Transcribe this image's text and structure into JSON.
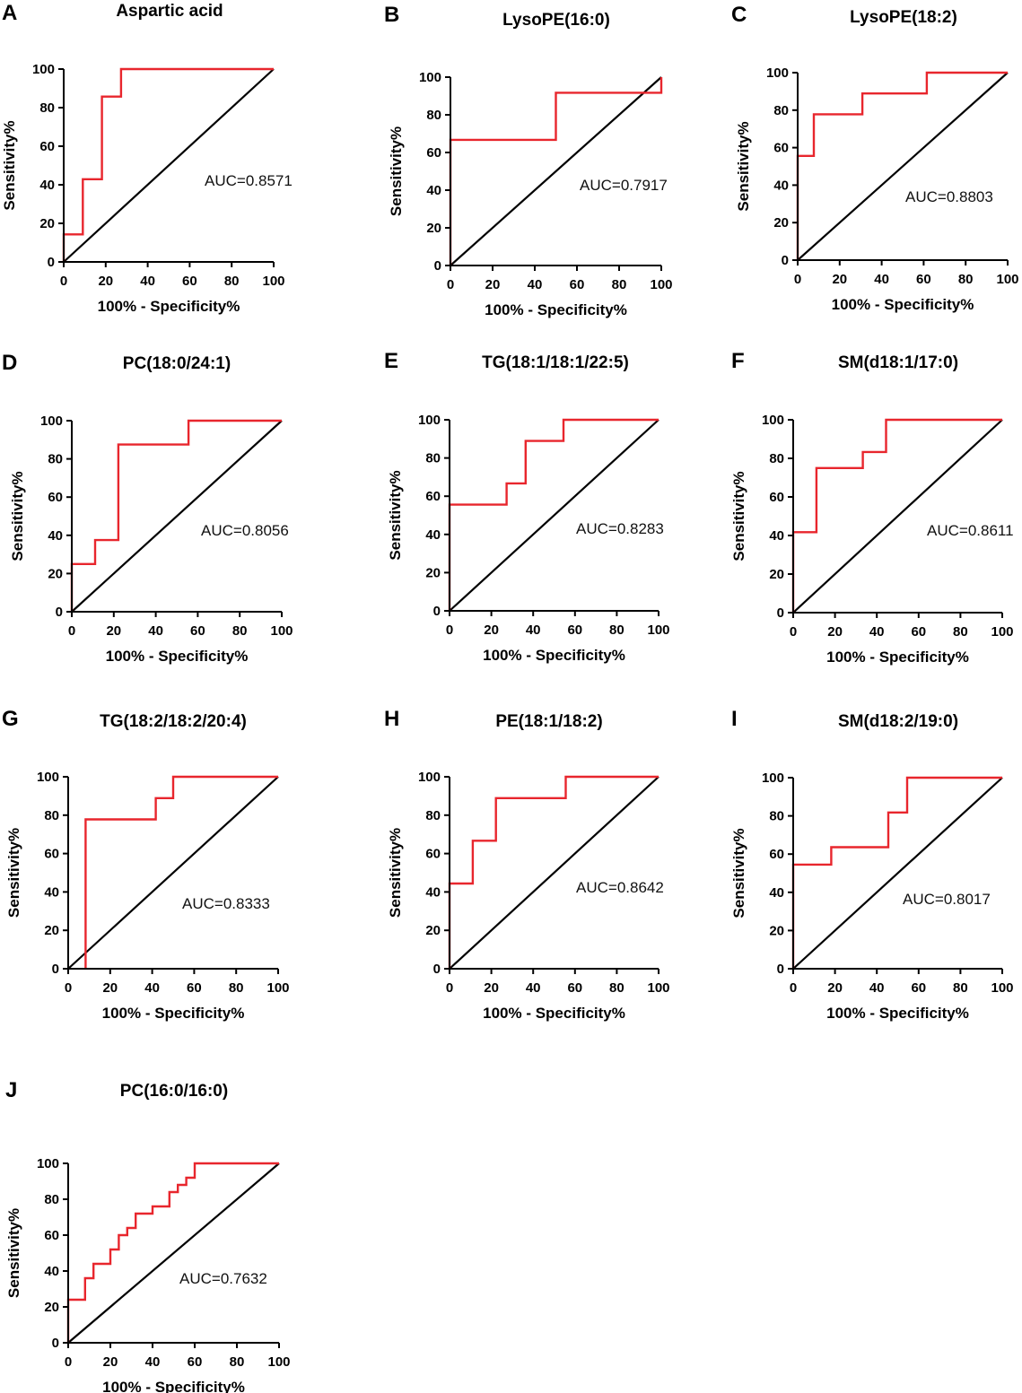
{
  "colors": {
    "roc": "#e8262d",
    "reference": "#000000",
    "axis": "#000000"
  },
  "chart_data": [
    {
      "panel": "A",
      "type": "line",
      "title": "Aspartic acid",
      "xlabel": "100% - Specificity%",
      "ylabel": "Sensitivity%",
      "xlim": [
        0,
        100
      ],
      "ylim": [
        0,
        100
      ],
      "x_ticks": [
        "0",
        "20",
        "40",
        "60",
        "80",
        "100"
      ],
      "y_ticks": [
        "0",
        "20",
        "40",
        "60",
        "80",
        "100"
      ],
      "annotation": "AUC=0.8571",
      "auc": 0.8571,
      "series": [
        {
          "name": "ROC",
          "points": [
            [
              0,
              0
            ],
            [
              0,
              14.3
            ],
            [
              9.1,
              14.3
            ],
            [
              9.1,
              42.9
            ],
            [
              18.2,
              42.9
            ],
            [
              18.2,
              85.7
            ],
            [
              27.3,
              85.7
            ],
            [
              27.3,
              100
            ],
            [
              100,
              100
            ]
          ]
        },
        {
          "name": "Reference",
          "points": [
            [
              0,
              0
            ],
            [
              100,
              100
            ]
          ]
        }
      ]
    },
    {
      "panel": "B",
      "type": "line",
      "title": "LysoPE(16:0)",
      "xlabel": "100% - Specificity%",
      "ylabel": "Sensitivity%",
      "xlim": [
        0,
        100
      ],
      "ylim": [
        0,
        100
      ],
      "x_ticks": [
        "0",
        "20",
        "40",
        "60",
        "80",
        "100"
      ],
      "y_ticks": [
        "0",
        "20",
        "40",
        "60",
        "80",
        "100"
      ],
      "annotation": "AUC=0.7917",
      "auc": 0.7917,
      "series": [
        {
          "name": "ROC",
          "points": [
            [
              0,
              0
            ],
            [
              0,
              66.7
            ],
            [
              50,
              66.7
            ],
            [
              50,
              91.7
            ],
            [
              100,
              91.7
            ],
            [
              100,
              100
            ]
          ]
        },
        {
          "name": "Reference",
          "points": [
            [
              0,
              0
            ],
            [
              100,
              100
            ]
          ]
        }
      ]
    },
    {
      "panel": "C",
      "type": "line",
      "title": "LysoPE(18:2)",
      "xlabel": "100% - Specificity%",
      "ylabel": "Sensitivity%",
      "xlim": [
        0,
        100
      ],
      "ylim": [
        0,
        100
      ],
      "x_ticks": [
        "0",
        "20",
        "40",
        "60",
        "80",
        "100"
      ],
      "y_ticks": [
        "0",
        "20",
        "40",
        "60",
        "80",
        "100"
      ],
      "annotation": "AUC=0.8803",
      "auc": 0.8803,
      "series": [
        {
          "name": "ROC",
          "points": [
            [
              0,
              0
            ],
            [
              0,
              55.6
            ],
            [
              7.7,
              55.6
            ],
            [
              7.7,
              77.8
            ],
            [
              30.8,
              77.8
            ],
            [
              30.8,
              88.9
            ],
            [
              61.5,
              88.9
            ],
            [
              61.5,
              100
            ],
            [
              100,
              100
            ]
          ]
        },
        {
          "name": "Reference",
          "points": [
            [
              0,
              0
            ],
            [
              100,
              100
            ]
          ]
        }
      ]
    },
    {
      "panel": "D",
      "type": "line",
      "title": "PC(18:0/24:1)",
      "xlabel": "100% - Specificity%",
      "ylabel": "Sensitivity%",
      "xlim": [
        0,
        100
      ],
      "ylim": [
        0,
        100
      ],
      "x_ticks": [
        "0",
        "20",
        "40",
        "60",
        "80",
        "100"
      ],
      "y_ticks": [
        "0",
        "20",
        "40",
        "60",
        "80",
        "100"
      ],
      "annotation": "AUC=0.8056",
      "auc": 0.8056,
      "series": [
        {
          "name": "ROC",
          "points": [
            [
              0,
              0
            ],
            [
              0,
              25
            ],
            [
              11.1,
              25
            ],
            [
              11.1,
              37.5
            ],
            [
              22.2,
              37.5
            ],
            [
              22.2,
              87.5
            ],
            [
              55.6,
              87.5
            ],
            [
              55.6,
              100
            ],
            [
              100,
              100
            ]
          ]
        },
        {
          "name": "Reference",
          "points": [
            [
              0,
              0
            ],
            [
              100,
              100
            ]
          ]
        }
      ]
    },
    {
      "panel": "E",
      "type": "line",
      "title": "TG(18:1/18:1/22:5)",
      "xlabel": "100% - Specificity%",
      "ylabel": "Sensitivity%",
      "xlim": [
        0,
        100
      ],
      "ylim": [
        0,
        100
      ],
      "x_ticks": [
        "0",
        "20",
        "40",
        "60",
        "80",
        "100"
      ],
      "y_ticks": [
        "0",
        "20",
        "40",
        "60",
        "80",
        "100"
      ],
      "annotation": "AUC=0.8283",
      "auc": 0.8283,
      "series": [
        {
          "name": "ROC",
          "points": [
            [
              0,
              0
            ],
            [
              0,
              55.6
            ],
            [
              27.3,
              55.6
            ],
            [
              27.3,
              66.7
            ],
            [
              36.4,
              66.7
            ],
            [
              36.4,
              88.9
            ],
            [
              54.5,
              88.9
            ],
            [
              54.5,
              100
            ],
            [
              100,
              100
            ]
          ]
        },
        {
          "name": "Reference",
          "points": [
            [
              0,
              0
            ],
            [
              100,
              100
            ]
          ]
        }
      ]
    },
    {
      "panel": "F",
      "type": "line",
      "title": "SM(d18:1/17:0)",
      "xlabel": "100% - Specificity%",
      "ylabel": "Sensitivity%",
      "xlim": [
        0,
        100
      ],
      "ylim": [
        0,
        100
      ],
      "x_ticks": [
        "0",
        "20",
        "40",
        "60",
        "80",
        "100"
      ],
      "y_ticks": [
        "0",
        "20",
        "40",
        "60",
        "80",
        "100"
      ],
      "annotation": "AUC=0.8611",
      "auc": 0.8611,
      "series": [
        {
          "name": "ROC",
          "points": [
            [
              0,
              0
            ],
            [
              0,
              41.7
            ],
            [
              11.1,
              41.7
            ],
            [
              11.1,
              75
            ],
            [
              33.3,
              75
            ],
            [
              33.3,
              83.3
            ],
            [
              44.4,
              83.3
            ],
            [
              44.4,
              100
            ],
            [
              100,
              100
            ]
          ]
        },
        {
          "name": "Reference",
          "points": [
            [
              0,
              0
            ],
            [
              100,
              100
            ]
          ]
        }
      ]
    },
    {
      "panel": "G",
      "type": "line",
      "title": "TG(18:2/18:2/20:4)",
      "xlabel": "100% - Specificity%",
      "ylabel": "Sensitivity%",
      "xlim": [
        0,
        100
      ],
      "ylim": [
        0,
        100
      ],
      "x_ticks": [
        "0",
        "20",
        "40",
        "60",
        "80",
        "100"
      ],
      "y_ticks": [
        "0",
        "20",
        "40",
        "60",
        "80",
        "100"
      ],
      "annotation": "AUC=0.8333",
      "auc": 0.8333,
      "series": [
        {
          "name": "ROC",
          "points": [
            [
              8.3,
              0
            ],
            [
              8.3,
              77.8
            ],
            [
              41.7,
              77.8
            ],
            [
              41.7,
              88.9
            ],
            [
              50,
              88.9
            ],
            [
              50,
              100
            ],
            [
              100,
              100
            ]
          ]
        },
        {
          "name": "Reference",
          "points": [
            [
              0,
              0
            ],
            [
              100,
              100
            ]
          ]
        }
      ]
    },
    {
      "panel": "H",
      "type": "line",
      "title": "PE(18:1/18:2)",
      "xlabel": "100% - Specificity%",
      "ylabel": "Sensitivity%",
      "xlim": [
        0,
        100
      ],
      "ylim": [
        0,
        100
      ],
      "x_ticks": [
        "0",
        "20",
        "40",
        "60",
        "80",
        "100"
      ],
      "y_ticks": [
        "0",
        "20",
        "40",
        "60",
        "80",
        "100"
      ],
      "annotation": "AUC=0.8642",
      "auc": 0.8642,
      "series": [
        {
          "name": "ROC",
          "points": [
            [
              0,
              0
            ],
            [
              0,
              44.4
            ],
            [
              11.1,
              44.4
            ],
            [
              11.1,
              66.7
            ],
            [
              22.2,
              66.7
            ],
            [
              22.2,
              88.9
            ],
            [
              55.6,
              88.9
            ],
            [
              55.6,
              100
            ],
            [
              100,
              100
            ]
          ]
        },
        {
          "name": "Reference",
          "points": [
            [
              0,
              0
            ],
            [
              100,
              100
            ]
          ]
        }
      ]
    },
    {
      "panel": "I",
      "type": "line",
      "title": "SM(d18:2/19:0)",
      "xlabel": "100% - Specificity%",
      "ylabel": "Sensitivity%",
      "xlim": [
        0,
        100
      ],
      "ylim": [
        0,
        100
      ],
      "x_ticks": [
        "0",
        "20",
        "40",
        "60",
        "80",
        "100"
      ],
      "y_ticks": [
        "0",
        "20",
        "40",
        "60",
        "80",
        "100"
      ],
      "annotation": "AUC=0.8017",
      "auc": 0.8017,
      "series": [
        {
          "name": "ROC",
          "points": [
            [
              0,
              0
            ],
            [
              0,
              54.5
            ],
            [
              18.2,
              54.5
            ],
            [
              18.2,
              63.6
            ],
            [
              45.5,
              63.6
            ],
            [
              45.5,
              81.8
            ],
            [
              54.5,
              81.8
            ],
            [
              54.5,
              100
            ],
            [
              100,
              100
            ]
          ]
        },
        {
          "name": "Reference",
          "points": [
            [
              0,
              0
            ],
            [
              100,
              100
            ]
          ]
        }
      ]
    },
    {
      "panel": "J",
      "type": "line",
      "title": "PC(16:0/16:0)",
      "xlabel": "100% - Specificity%",
      "ylabel": "Sensitivity%",
      "xlim": [
        0,
        100
      ],
      "ylim": [
        0,
        100
      ],
      "x_ticks": [
        "0",
        "20",
        "40",
        "60",
        "80",
        "100"
      ],
      "y_ticks": [
        "0",
        "20",
        "40",
        "60",
        "80",
        "100"
      ],
      "annotation": "AUC=0.7632",
      "auc": 0.7632,
      "series": [
        {
          "name": "ROC",
          "points": [
            [
              0,
              0
            ],
            [
              0,
              24
            ],
            [
              8,
              24
            ],
            [
              8,
              36
            ],
            [
              12,
              36
            ],
            [
              12,
              44
            ],
            [
              20,
              44
            ],
            [
              20,
              52
            ],
            [
              24,
              52
            ],
            [
              24,
              60
            ],
            [
              28,
              60
            ],
            [
              28,
              64
            ],
            [
              32,
              64
            ],
            [
              32,
              72
            ],
            [
              40,
              72
            ],
            [
              40,
              76
            ],
            [
              48,
              76
            ],
            [
              48,
              84
            ],
            [
              52,
              84
            ],
            [
              52,
              88
            ],
            [
              56,
              88
            ],
            [
              56,
              92
            ],
            [
              60,
              92
            ],
            [
              60,
              100
            ],
            [
              100,
              100
            ]
          ]
        },
        {
          "name": "Reference",
          "points": [
            [
              0,
              0
            ],
            [
              100,
              100
            ]
          ]
        }
      ]
    }
  ]
}
